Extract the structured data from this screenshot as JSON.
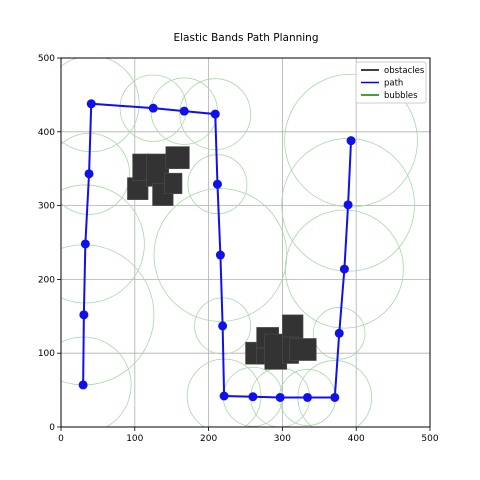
{
  "chart_data": {
    "type": "scatter",
    "title": "Elastic Bands Path Planning",
    "xlabel": "",
    "ylabel": "",
    "xlim": [
      0,
      500
    ],
    "ylim": [
      0,
      500
    ],
    "xticks": [
      0,
      100,
      200,
      300,
      400,
      500
    ],
    "yticks": [
      0,
      100,
      200,
      300,
      400,
      500
    ],
    "grid": true,
    "legend": {
      "placement": "top-right",
      "entries": [
        {
          "label": "obstacles",
          "color": "#000000"
        },
        {
          "label": "path",
          "color": "#0000ff"
        },
        {
          "label": "bubbles",
          "color": "#008000"
        }
      ]
    },
    "colors": {
      "obstacles": "#333333",
      "path": "#1010ee",
      "bubbles": "#a8d8a8",
      "grid": "#b0b0b0"
    },
    "obstacles": [
      [
        90,
        308,
        28,
        30
      ],
      [
        97,
        334,
        22,
        36
      ],
      [
        116,
        326,
        30,
        44
      ],
      [
        124,
        300,
        28,
        30
      ],
      [
        140,
        316,
        24,
        28
      ],
      [
        142,
        350,
        32,
        30
      ],
      [
        250,
        85,
        26,
        30
      ],
      [
        265,
        107,
        30,
        28
      ],
      [
        265,
        85,
        32,
        22
      ],
      [
        276,
        78,
        30,
        48
      ],
      [
        300,
        118,
        28,
        34
      ],
      [
        300,
        86,
        22,
        36
      ],
      [
        310,
        90,
        36,
        30
      ]
    ],
    "path": {
      "name": "path",
      "x": [
        30,
        31,
        33,
        38,
        41,
        125,
        167,
        209,
        212,
        216,
        219,
        221,
        260,
        297,
        334,
        371,
        377,
        384,
        389,
        393
      ],
      "y": [
        57,
        152,
        248,
        343,
        438,
        432,
        428,
        424,
        329,
        233,
        137,
        42,
        41,
        40,
        40,
        40,
        127,
        214,
        301,
        388
      ]
    },
    "bubbles": {
      "name": "bubbles",
      "cx": [
        30,
        31,
        33,
        38,
        41,
        125,
        167,
        209,
        212,
        216,
        219,
        221,
        260,
        297,
        334,
        371,
        377,
        384,
        389,
        393
      ],
      "cy": [
        57,
        152,
        248,
        343,
        438,
        432,
        428,
        424,
        329,
        233,
        137,
        42,
        41,
        40,
        40,
        40,
        127,
        214,
        301,
        388
      ],
      "r": [
        65,
        95,
        80,
        55,
        65,
        45,
        45,
        48,
        40,
        90,
        38,
        50,
        40,
        40,
        38,
        50,
        35,
        80,
        90,
        90
      ]
    }
  }
}
